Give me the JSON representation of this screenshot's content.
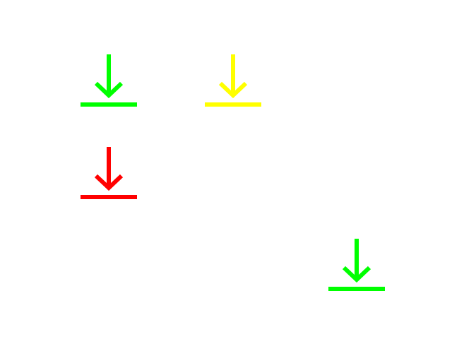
{
  "buttons": [
    {
      "icon": "download-icon",
      "color": "#00ff00"
    },
    {
      "icon": "download-icon",
      "color": "#ffff00"
    },
    {
      "icon": "download-icon",
      "color": "#ff0000"
    },
    {
      "icon": "download-icon",
      "color": "#00ff00"
    }
  ]
}
